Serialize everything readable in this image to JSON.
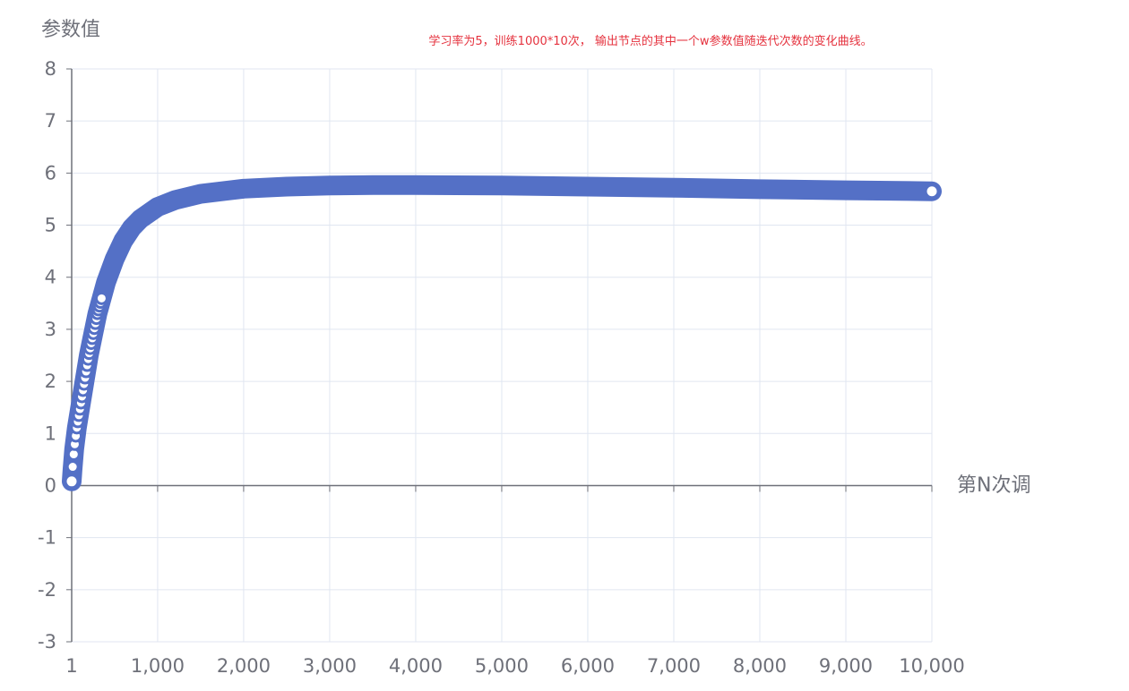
{
  "chart_data": {
    "type": "line",
    "title": "学习率为5，训练1000*10次， 输出节点的其中一个w参数值随迭代次数的变化曲线。",
    "title_color": "#e5323e",
    "ylabel": "参数值",
    "xlabel": "第N次调",
    "xlim": [
      1,
      10000
    ],
    "ylim": [
      -3,
      8
    ],
    "x_ticks": [
      1,
      1000,
      2000,
      3000,
      4000,
      5000,
      6000,
      7000,
      8000,
      9000,
      10000
    ],
    "x_tick_labels": [
      "1",
      "1,000",
      "2,000",
      "3,000",
      "4,000",
      "5,000",
      "6,000",
      "7,000",
      "8,000",
      "9,000",
      "10,000"
    ],
    "y_ticks": [
      -3,
      -2,
      -1,
      0,
      1,
      2,
      3,
      4,
      5,
      6,
      7,
      8
    ],
    "y_tick_labels": [
      "-3",
      "-2",
      "-1",
      "0",
      "1",
      "2",
      "3",
      "4",
      "5",
      "6",
      "7",
      "8"
    ],
    "grid": true,
    "series_color": "#5470c6",
    "series": [
      {
        "x": [
          1,
          10,
          30,
          60,
          100,
          150,
          200,
          250,
          300,
          400,
          500,
          600,
          700,
          800,
          1000,
          1200,
          1500,
          2000,
          2500,
          3000,
          3500,
          4000,
          5000,
          6000,
          7000,
          8000,
          9000,
          10000
        ],
        "values": [
          0.08,
          0.3,
          0.7,
          1.1,
          1.5,
          2.0,
          2.5,
          2.9,
          3.3,
          3.9,
          4.35,
          4.7,
          4.95,
          5.12,
          5.35,
          5.48,
          5.6,
          5.7,
          5.74,
          5.76,
          5.77,
          5.77,
          5.76,
          5.74,
          5.72,
          5.69,
          5.67,
          5.65
        ]
      }
    ]
  }
}
